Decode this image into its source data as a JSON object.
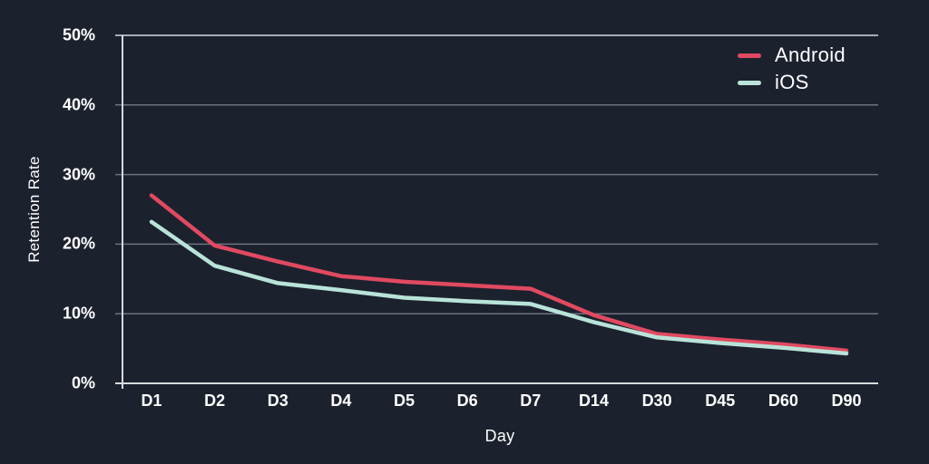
{
  "colors": {
    "background": "#1c212e",
    "grid": "#6d727e",
    "axis": "#d7d9dd",
    "text": "#ffffff"
  },
  "chart_data": {
    "type": "line",
    "title": "",
    "xlabel": "Day",
    "ylabel": "Retention Rate",
    "categories": [
      "D1",
      "D2",
      "D3",
      "D4",
      "D5",
      "D6",
      "D7",
      "D14",
      "D30",
      "D45",
      "D60",
      "D90"
    ],
    "series": [
      {
        "name": "Android",
        "color": "#e04a60",
        "values": [
          27.0,
          19.8,
          17.5,
          15.4,
          14.6,
          14.1,
          13.6,
          9.8,
          7.1,
          6.3,
          5.6,
          4.7
        ]
      },
      {
        "name": "iOS",
        "color": "#b9e3d9",
        "values": [
          23.2,
          16.9,
          14.4,
          13.4,
          12.3,
          11.8,
          11.4,
          8.8,
          6.6,
          5.8,
          5.1,
          4.3
        ]
      }
    ],
    "y_axis": {
      "min": 0,
      "max": 50,
      "ticks": [
        {
          "value": 0,
          "label": "0%"
        },
        {
          "value": 10,
          "label": "10%"
        },
        {
          "value": 20,
          "label": "20%"
        },
        {
          "value": 30,
          "label": "30%"
        },
        {
          "value": 40,
          "label": "40%"
        },
        {
          "value": 50,
          "label": "50%"
        }
      ]
    },
    "grid": true,
    "legend_position": "top-right"
  }
}
